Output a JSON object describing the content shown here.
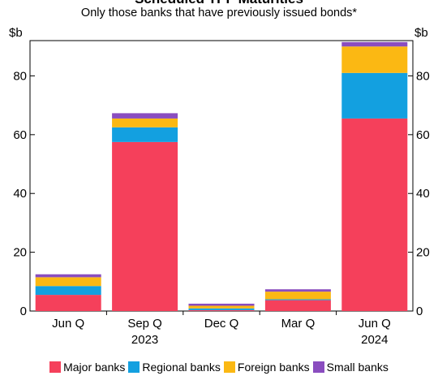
{
  "title": "Scheduled TPF Maturities",
  "subtitle": "Only those banks that have previously issued bonds*",
  "unit_left": "$b",
  "unit_right": "$b",
  "chart_data": {
    "type": "bar",
    "stacked": true,
    "title": "Scheduled TPF Maturities",
    "subtitle": "Only those banks that have previously issued bonds*",
    "ylabel": "$b",
    "ylim": [
      0,
      92
    ],
    "yticks": [
      0,
      20,
      40,
      60,
      80
    ],
    "grid": false,
    "legend_position": "bottom",
    "categories": [
      "Jun Q",
      "Sep Q",
      "Dec Q",
      "Mar Q",
      "Jun Q"
    ],
    "year_labels": [
      "",
      "2023",
      "",
      "",
      "2024"
    ],
    "series": [
      {
        "name": "Major banks",
        "color": "#f5405b",
        "values": [
          5.5,
          57.5,
          0.3,
          3.7,
          65.5
        ]
      },
      {
        "name": "Regional banks",
        "color": "#13a0e0",
        "values": [
          3.0,
          5.0,
          0.6,
          0.3,
          15.5
        ]
      },
      {
        "name": "Foreign banks",
        "color": "#fbb813",
        "values": [
          3.0,
          3.0,
          0.9,
          2.6,
          9.0
        ]
      },
      {
        "name": "Small banks",
        "color": "#8a4dbf",
        "values": [
          1.0,
          1.8,
          0.7,
          0.8,
          1.5
        ]
      }
    ]
  }
}
